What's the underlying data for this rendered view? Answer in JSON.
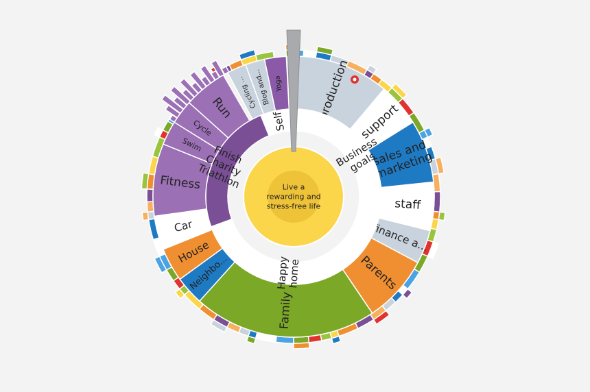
{
  "center": {
    "lines": [
      "Live a",
      "rewarding and",
      "stress-free life"
    ],
    "fill": "#fbd54a",
    "inner_fill": "#efc338"
  },
  "rings": {
    "ring1": [
      {
        "label": "Self",
        "a0": -22,
        "a1": 0,
        "fill": "#ffffff",
        "text": "#222"
      },
      {
        "label": "Business goals",
        "lines": [
          "Business",
          "goals"
        ],
        "a0": 0,
        "a1": 118,
        "fill": "#ffffff",
        "text": "#222"
      },
      {
        "label": "Happy home",
        "lines": [
          "Happy",
          "home"
        ],
        "a0": 118,
        "a1": 250,
        "fill": "#ffffff",
        "text": "#222"
      },
      {
        "label": "Finish Charity Triathlon",
        "lines": [
          "Finish",
          "Charity",
          "Triathlon"
        ],
        "a0": 250,
        "a1": 338,
        "fill": "#7b4f96",
        "text": "#ffffff"
      }
    ],
    "ring2": [
      {
        "label": "Yoga",
        "a0": -12,
        "a1": -3,
        "fill": "#8a5aa8",
        "text": "#ffffff"
      },
      {
        "label": "Blog and...",
        "a0": -20,
        "a1": -12,
        "fill": "#c9d3dd",
        "text": "#222"
      },
      {
        "label": "Cycling ...",
        "a0": -28,
        "a1": -20,
        "fill": "#c9d3dd",
        "text": "#222"
      },
      {
        "label": "production",
        "a0": 1,
        "a1": 40,
        "fill": "#c9d3dd",
        "text": "#222"
      },
      {
        "label": "support",
        "a0": 40,
        "a1": 58,
        "fill": "#ffffff",
        "text": "#222"
      },
      {
        "label": "sales and marketing",
        "lines": [
          "sales and",
          "marketing"
        ],
        "a0": 58,
        "a1": 84,
        "fill": "#1f7ac4",
        "text": "#ffffff"
      },
      {
        "label": "staff",
        "a0": 84,
        "a1": 104,
        "fill": "#ffffff",
        "text": "#111"
      },
      {
        "label": "finance a...",
        "a0": 104,
        "a1": 118,
        "fill": "#c9d3dd",
        "text": "#222"
      },
      {
        "label": "Parents",
        "a0": 118,
        "a1": 146,
        "fill": "#f08f32",
        "text": "#222"
      },
      {
        "label": "Family",
        "a0": 146,
        "a1": 222,
        "fill": "#7ca828",
        "text": "#222"
      },
      {
        "label": "Neighbo...",
        "a0": 222,
        "a1": 234,
        "fill": "#1f7ac4",
        "text": "#ffffff"
      },
      {
        "label": "House",
        "a0": 234,
        "a1": 248,
        "fill": "#f08f32",
        "text": "#111"
      },
      {
        "label": "Car",
        "a0": 248,
        "a1": 262,
        "fill": "#ffffff",
        "text": "#222"
      },
      {
        "label": "Fitness",
        "a0": 262,
        "a1": 292,
        "fill": "#9b70b5",
        "text": "#111"
      },
      {
        "label": "Swim",
        "a0": 292,
        "a1": 302,
        "fill": "#9b70b5",
        "text": "#222"
      },
      {
        "label": "Cycle",
        "a0": 302,
        "a1": 312,
        "fill": "#9b70b5",
        "text": "#222"
      },
      {
        "label": "Run",
        "a0": 312,
        "a1": 330,
        "fill": "#9b70b5",
        "text": "#222"
      }
    ]
  },
  "colors": {
    "purple": "#7b4f96",
    "purple_light": "#9b70b5",
    "blue": "#1f7ac4",
    "blue_light": "#4ba3e3",
    "orange": "#f08f32",
    "orange_light": "#f7b060",
    "green": "#7ca828",
    "green_light": "#9bc43e",
    "grey": "#c9d3dd",
    "red": "#e0332f",
    "yellow": "#fbd54a",
    "needle": "#a9aaad"
  },
  "icons": {
    "needle": "pointer-needle-icon",
    "badge": "heart-badge-icon"
  }
}
